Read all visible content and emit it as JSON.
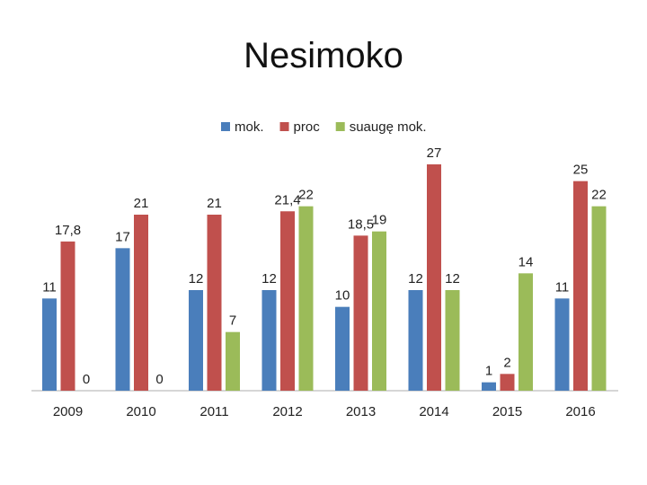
{
  "slide": {
    "title": "Nesimoko"
  },
  "chart_data": {
    "type": "bar",
    "categories": [
      "2009",
      "2010",
      "2011",
      "2012",
      "2013",
      "2014",
      "2015",
      "2016"
    ],
    "series": [
      {
        "name": "mok.",
        "color": "#4a7ebb",
        "values": [
          11,
          17,
          12,
          12,
          10,
          12,
          1,
          11
        ],
        "labels": [
          "11",
          "17",
          "12",
          "12",
          "10",
          "12",
          "1",
          "11"
        ]
      },
      {
        "name": "proc",
        "color": "#c0504d",
        "values": [
          17.8,
          21,
          21,
          21.4,
          18.5,
          27,
          2,
          25
        ],
        "labels": [
          "17,8",
          "21",
          "21",
          "21,4",
          "18,5",
          "27",
          "2",
          "25"
        ]
      },
      {
        "name": "suaugę mok.",
        "color": "#9bbb59",
        "values": [
          0,
          0,
          7,
          22,
          19,
          12,
          14,
          22
        ],
        "labels": [
          "0",
          "0",
          "7",
          "22",
          "19",
          "12",
          "14",
          "22"
        ]
      }
    ],
    "ylim": [
      0,
      30
    ],
    "grid": false,
    "legend": "top"
  }
}
